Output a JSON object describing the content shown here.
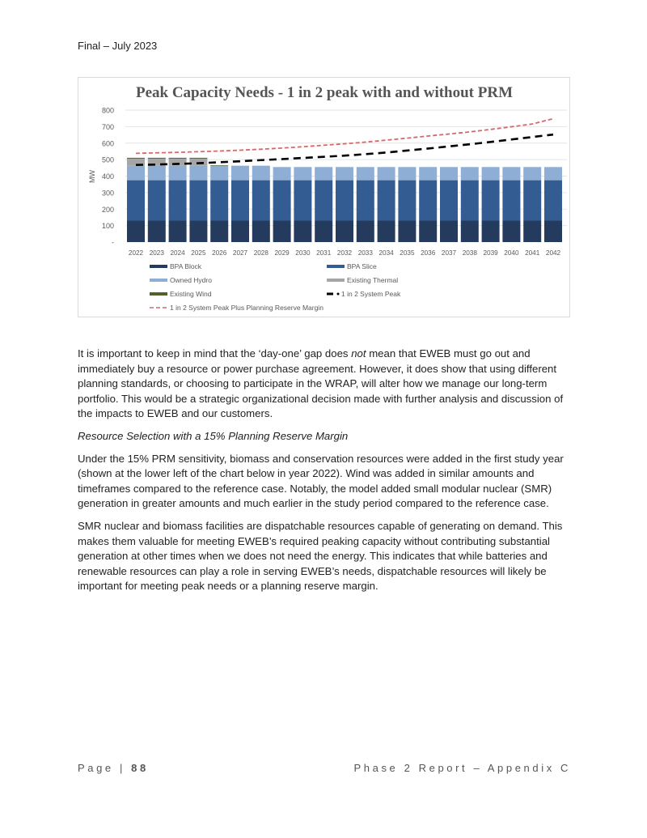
{
  "header": {
    "text": "Final – July 2023"
  },
  "chart_data": {
    "type": "bar",
    "title": "Peak Capacity Needs - 1 in 2 peak with and without PRM",
    "ylabel": "MW",
    "xlabel": "",
    "ylim": [
      0,
      800
    ],
    "yticks": [
      "-",
      "100",
      "200",
      "300",
      "400",
      "500",
      "600",
      "700",
      "800"
    ],
    "grid": true,
    "legend_position": "bottom",
    "categories": [
      "2022",
      "2023",
      "2024",
      "2025",
      "2026",
      "2027",
      "2028",
      "2029",
      "2030",
      "2031",
      "2032",
      "2033",
      "2034",
      "2035",
      "2036",
      "2037",
      "2038",
      "2039",
      "2040",
      "2041",
      "2042"
    ],
    "stacked_series": [
      {
        "name": "BPA Block",
        "color": "#243b5e",
        "values": [
          130,
          130,
          130,
          130,
          130,
          130,
          130,
          130,
          130,
          130,
          130,
          130,
          130,
          130,
          130,
          130,
          130,
          130,
          130,
          130,
          130
        ]
      },
      {
        "name": "BPA Slice",
        "color": "#335c93",
        "values": [
          245,
          245,
          245,
          245,
          245,
          245,
          245,
          245,
          245,
          245,
          245,
          245,
          245,
          245,
          245,
          245,
          245,
          245,
          245,
          245,
          245
        ]
      },
      {
        "name": "Owned Hydro",
        "color": "#8eaed6",
        "values": [
          88,
          88,
          88,
          88,
          88,
          88,
          88,
          80,
          80,
          80,
          80,
          80,
          80,
          80,
          80,
          80,
          80,
          80,
          80,
          80,
          80
        ]
      },
      {
        "name": "Existing Thermal",
        "color": "#a6a6a6",
        "values": [
          43,
          43,
          43,
          43,
          0,
          0,
          0,
          0,
          0,
          0,
          0,
          0,
          0,
          0,
          0,
          0,
          0,
          0,
          0,
          0,
          0
        ]
      },
      {
        "name": "Existing Wind",
        "color": "#4f6228",
        "values": [
          5,
          5,
          5,
          5,
          3,
          0,
          0,
          0,
          0,
          0,
          0,
          0,
          0,
          0,
          0,
          0,
          0,
          0,
          0,
          0,
          0
        ]
      }
    ],
    "line_series": [
      {
        "name": "1 in 2 System Peak",
        "color": "#000000",
        "values": [
          468,
          470,
          474,
          478,
          484,
          490,
          497,
          503,
          510,
          517,
          524,
          533,
          543,
          555,
          567,
          580,
          593,
          607,
          622,
          637,
          652
        ]
      },
      {
        "name": "1 in 2 System Peak Plus Planning Reserve Margin",
        "color": "#d9676a",
        "values": [
          538,
          541,
          544,
          548,
          552,
          557,
          563,
          570,
          578,
          587,
          596,
          606,
          618,
          630,
          643,
          655,
          668,
          683,
          699,
          716,
          748
        ]
      }
    ]
  },
  "body": {
    "p1_a": "It is important to keep in mind that the ‘day-one’ gap does ",
    "p1_em": "not",
    "p1_b": " mean that EWEB must go out and immediately buy a resource or power purchase agreement. However, it does show that using different planning standards, or choosing to participate in the WRAP, will alter how we manage our long-term portfolio. This would be a strategic organizational decision made with further analysis and discussion of the impacts to EWEB and our customers.",
    "heading": "Resource Selection with a 15% Planning Reserve Margin",
    "p2": "Under the 15% PRM sensitivity, biomass and conservation resources were added in the first study year (shown at the lower left of the chart below in year 2022). Wind was added in similar amounts and timeframes compared to the reference case. Notably, the model added small modular nuclear (SMR) generation in greater amounts and much earlier in the study period compared to the reference case.",
    "p3": "SMR nuclear and biomass facilities are dispatchable resources capable of generating on demand. This makes them valuable for meeting EWEB’s required peaking capacity without contributing substantial generation at other times when we does not need the energy. This indicates that while batteries and renewable resources can play a role in serving EWEB’s needs, dispatchable resources will likely be important for meeting peak needs or a planning reserve margin."
  },
  "footer": {
    "page_label": "Page | ",
    "page_number": "88",
    "right": "Phase 2 Report – Appendix C"
  }
}
